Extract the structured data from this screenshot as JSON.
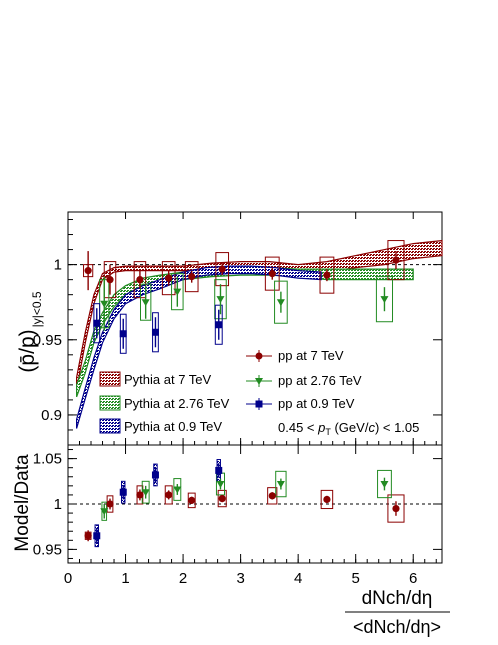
{
  "chart_data": {
    "type": "scatter",
    "top_panel": {
      "ylabel": "(p̄/p)",
      "ylabel_subscript": "|y|<0.5",
      "ylim": [
        0.88,
        1.035
      ],
      "yticks": [
        0.9,
        0.95,
        1.0
      ],
      "ytick_labels": [
        "0.9",
        "0.95",
        "1"
      ],
      "reference_line": 1.0,
      "annotation": "0.45 < p_T (GeV/c) < 1.05",
      "annotation_parts": [
        "0.45 < ",
        "p",
        "T",
        " (GeV/",
        "c",
        ") < 1.05"
      ],
      "series": [
        {
          "name": "pp at 7 TeV",
          "marker": "circle",
          "color": "#8b0000",
          "points": [
            {
              "x": 0.35,
              "y": 0.996,
              "err": 0.013,
              "sys_w": 0.08,
              "sys": 0.004
            },
            {
              "x": 0.73,
              "y": 0.99,
              "err": 0.01,
              "sys_w": 0.1,
              "sys": 0.012
            },
            {
              "x": 1.25,
              "y": 0.99,
              "err": 0.006,
              "sys_w": 0.1,
              "sys": 0.012
            },
            {
              "x": 1.75,
              "y": 0.991,
              "err": 0.005,
              "sys_w": 0.11,
              "sys": 0.011
            },
            {
              "x": 2.15,
              "y": 0.992,
              "err": 0.004,
              "sys_w": 0.11,
              "sys": 0.01
            },
            {
              "x": 2.68,
              "y": 0.997,
              "err": 0.004,
              "sys_w": 0.11,
              "sys": 0.011
            },
            {
              "x": 3.55,
              "y": 0.994,
              "err": 0.004,
              "sys_w": 0.12,
              "sys": 0.011
            },
            {
              "x": 4.5,
              "y": 0.993,
              "err": 0.004,
              "sys_w": 0.12,
              "sys": 0.012
            },
            {
              "x": 5.7,
              "y": 1.003,
              "err": 0.006,
              "sys_w": 0.14,
              "sys": 0.013
            }
          ]
        },
        {
          "name": "pp at 2.76 TeV",
          "marker": "triangle-down",
          "color": "#228b22",
          "points": [
            {
              "x": 0.63,
              "y": 0.974,
              "err": 0.018,
              "sys_w": 0.08,
              "sys": 0.016
            },
            {
              "x": 1.35,
              "y": 0.975,
              "err": 0.011,
              "sys_w": 0.09,
              "sys": 0.012
            },
            {
              "x": 1.9,
              "y": 0.982,
              "err": 0.01,
              "sys_w": 0.1,
              "sys": 0.012
            },
            {
              "x": 2.65,
              "y": 0.977,
              "err": 0.01,
              "sys_w": 0.1,
              "sys": 0.013
            },
            {
              "x": 3.7,
              "y": 0.975,
              "err": 0.007,
              "sys_w": 0.11,
              "sys": 0.014
            },
            {
              "x": 5.5,
              "y": 0.977,
              "err": 0.008,
              "sys_w": 0.14,
              "sys": 0.015
            }
          ]
        },
        {
          "name": "pp at 0.9 TeV",
          "marker": "square",
          "color": "#00008b",
          "points": [
            {
              "x": 0.5,
              "y": 0.961,
              "err": 0.01,
              "sys_w": 0.05,
              "sys": 0.013
            },
            {
              "x": 0.96,
              "y": 0.954,
              "err": 0.01,
              "sys_w": 0.05,
              "sys": 0.013
            },
            {
              "x": 1.52,
              "y": 0.955,
              "err": 0.01,
              "sys_w": 0.05,
              "sys": 0.013
            },
            {
              "x": 2.62,
              "y": 0.96,
              "err": 0.01,
              "sys_w": 0.06,
              "sys": 0.013
            }
          ]
        }
      ],
      "model_bands": [
        {
          "name": "Pythia at 7 TeV",
          "color": "#8b0000",
          "x": [
            0.15,
            0.3,
            0.45,
            0.6,
            0.8,
            1.0,
            1.3,
            1.6,
            2.0,
            2.5,
            3.0,
            3.5,
            4.0,
            4.5,
            5.0,
            5.5,
            6.0,
            6.5
          ],
          "low": [
            0.917,
            0.948,
            0.974,
            0.99,
            0.995,
            0.996,
            0.996,
            0.996,
            0.996,
            0.997,
            0.998,
            0.997,
            0.995,
            0.995,
            0.998,
            1.0,
            1.004,
            1.006
          ],
          "high": [
            0.925,
            0.955,
            0.98,
            0.994,
            0.998,
            0.999,
            0.999,
            0.999,
            0.999,
            1.001,
            1.002,
            1.002,
            1.0,
            1.002,
            1.006,
            1.01,
            1.014,
            1.016
          ]
        },
        {
          "name": "Pythia at 2.76 TeV",
          "color": "#228b22",
          "x": [
            0.15,
            0.3,
            0.45,
            0.6,
            0.8,
            1.0,
            1.3,
            1.6,
            2.0,
            2.5,
            3.0,
            3.5,
            4.0,
            4.5,
            5.0,
            5.5,
            6.0
          ],
          "low": [
            0.912,
            0.928,
            0.948,
            0.96,
            0.972,
            0.98,
            0.986,
            0.988,
            0.99,
            0.992,
            0.993,
            0.993,
            0.992,
            0.99,
            0.99,
            0.99,
            0.99
          ],
          "high": [
            0.92,
            0.936,
            0.956,
            0.968,
            0.98,
            0.986,
            0.991,
            0.993,
            0.995,
            0.997,
            0.998,
            0.998,
            0.997,
            0.997,
            0.997,
            0.997,
            0.997
          ]
        },
        {
          "name": "Pythia at 0.9 TeV",
          "color": "#00008b",
          "x": [
            0.15,
            0.3,
            0.45,
            0.6,
            0.8,
            1.0,
            1.3,
            1.6,
            2.0,
            2.4,
            2.8,
            3.2,
            3.6,
            4.0,
            4.4
          ],
          "low": [
            0.891,
            0.911,
            0.93,
            0.948,
            0.964,
            0.974,
            0.98,
            0.984,
            0.99,
            0.993,
            0.994,
            0.994,
            0.993,
            0.991,
            0.99
          ],
          "high": [
            0.897,
            0.918,
            0.938,
            0.955,
            0.97,
            0.98,
            0.986,
            0.99,
            0.995,
            0.998,
            0.999,
            0.999,
            0.998,
            0.996,
            0.995
          ]
        }
      ]
    },
    "bottom_panel": {
      "ylabel": "Model/Data",
      "ylim": [
        0.935,
        1.065
      ],
      "yticks": [
        0.95,
        1.0,
        1.05
      ],
      "ytick_labels": [
        "0.95",
        "1",
        "1.05"
      ],
      "reference_line": 1.0,
      "series": [
        {
          "name": "7 TeV",
          "marker": "circle",
          "color": "#8b0000",
          "points": [
            {
              "x": 0.35,
              "y": 0.965,
              "err": 0.006,
              "sys_w": 0.05,
              "sys": 0.004
            },
            {
              "x": 0.73,
              "y": 1.0,
              "err": 0.006,
              "sys_w": 0.05,
              "sys": 0.009
            },
            {
              "x": 1.25,
              "y": 1.01,
              "err": 0.006,
              "sys_w": 0.05,
              "sys": 0.01
            },
            {
              "x": 1.75,
              "y": 1.01,
              "err": 0.005,
              "sys_w": 0.06,
              "sys": 0.01
            },
            {
              "x": 2.15,
              "y": 1.004,
              "err": 0.004,
              "sys_w": 0.06,
              "sys": 0.008
            },
            {
              "x": 2.68,
              "y": 1.006,
              "err": 0.004,
              "sys_w": 0.07,
              "sys": 0.009
            },
            {
              "x": 3.55,
              "y": 1.009,
              "err": 0.004,
              "sys_w": 0.08,
              "sys": 0.009
            },
            {
              "x": 4.5,
              "y": 1.005,
              "err": 0.004,
              "sys_w": 0.1,
              "sys": 0.01
            },
            {
              "x": 5.7,
              "y": 0.995,
              "err": 0.008,
              "sys_w": 0.14,
              "sys": 0.015
            }
          ]
        },
        {
          "name": "2.76 TeV",
          "marker": "triangle-down",
          "color": "#228b22",
          "points": [
            {
              "x": 0.63,
              "y": 0.992,
              "err": 0.008,
              "sys_w": 0.04,
              "sys": 0.01
            },
            {
              "x": 1.35,
              "y": 1.013,
              "err": 0.007,
              "sys_w": 0.06,
              "sys": 0.012
            },
            {
              "x": 1.9,
              "y": 1.016,
              "err": 0.006,
              "sys_w": 0.06,
              "sys": 0.012
            },
            {
              "x": 2.65,
              "y": 1.022,
              "err": 0.006,
              "sys_w": 0.07,
              "sys": 0.012
            },
            {
              "x": 3.7,
              "y": 1.022,
              "err": 0.006,
              "sys_w": 0.09,
              "sys": 0.014
            },
            {
              "x": 5.5,
              "y": 1.022,
              "err": 0.007,
              "sys_w": 0.12,
              "sys": 0.015
            }
          ]
        },
        {
          "name": "0.9 TeV",
          "marker": "square",
          "color": "#00008b",
          "points": [
            {
              "x": 0.5,
              "y": 0.965,
              "err": 0.008,
              "sys_w": 0.03,
              "sys": 0.012
            },
            {
              "x": 0.96,
              "y": 1.013,
              "err": 0.008,
              "sys_w": 0.03,
              "sys": 0.012
            },
            {
              "x": 1.52,
              "y": 1.032,
              "err": 0.008,
              "sys_w": 0.03,
              "sys": 0.012
            },
            {
              "x": 2.62,
              "y": 1.037,
              "err": 0.008,
              "sys_w": 0.03,
              "sys": 0.012
            }
          ]
        }
      ]
    },
    "x_axis": {
      "xlim": [
        0,
        6.5
      ],
      "xticks": [
        0,
        1,
        2,
        3,
        4,
        5,
        6
      ],
      "xtick_labels": [
        "0",
        "1",
        "2",
        "3",
        "4",
        "5",
        "6"
      ],
      "xlabel_numerator": "dNch/dη",
      "xlabel_denominator": "<dNch/dη>"
    },
    "legend_models": [
      "Pythia at 7 TeV",
      "Pythia at 2.76 TeV",
      "Pythia at 0.9 TeV"
    ],
    "legend_data": [
      "pp at 7 TeV",
      "pp at 2.76 TeV",
      "pp at 0.9 TeV"
    ]
  }
}
